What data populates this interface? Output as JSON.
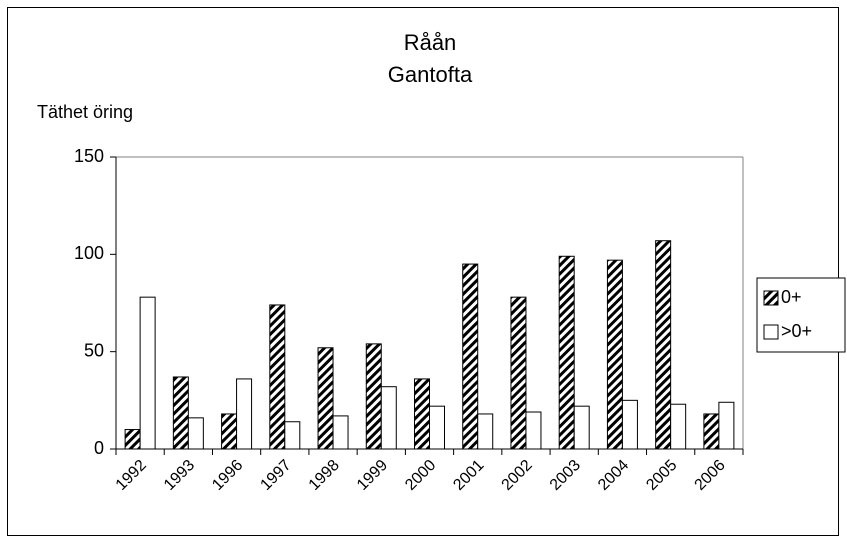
{
  "chart_data": {
    "type": "bar",
    "title": "Råån",
    "subtitle": "Gantofta",
    "y_label": "Täthet öring",
    "categories": [
      "1992",
      "1993",
      "1996",
      "1997",
      "1998",
      "1999",
      "2000",
      "2001",
      "2002",
      "2003",
      "2004",
      "2005",
      "2006"
    ],
    "series": [
      {
        "name": "0+",
        "color": "#000000",
        "hatch": true,
        "values": [
          10,
          37,
          18,
          74,
          52,
          54,
          36,
          95,
          78,
          99,
          97,
          107,
          18
        ]
      },
      {
        "name": ">0+",
        "color": "#ffffff",
        "hatch": false,
        "values": [
          78,
          16,
          36,
          14,
          17,
          32,
          22,
          18,
          19,
          22,
          25,
          23,
          24
        ]
      }
    ],
    "ylim": [
      0,
      150
    ],
    "yticks": [
      0,
      50,
      100,
      150
    ],
    "grid": false,
    "legend": "right"
  }
}
